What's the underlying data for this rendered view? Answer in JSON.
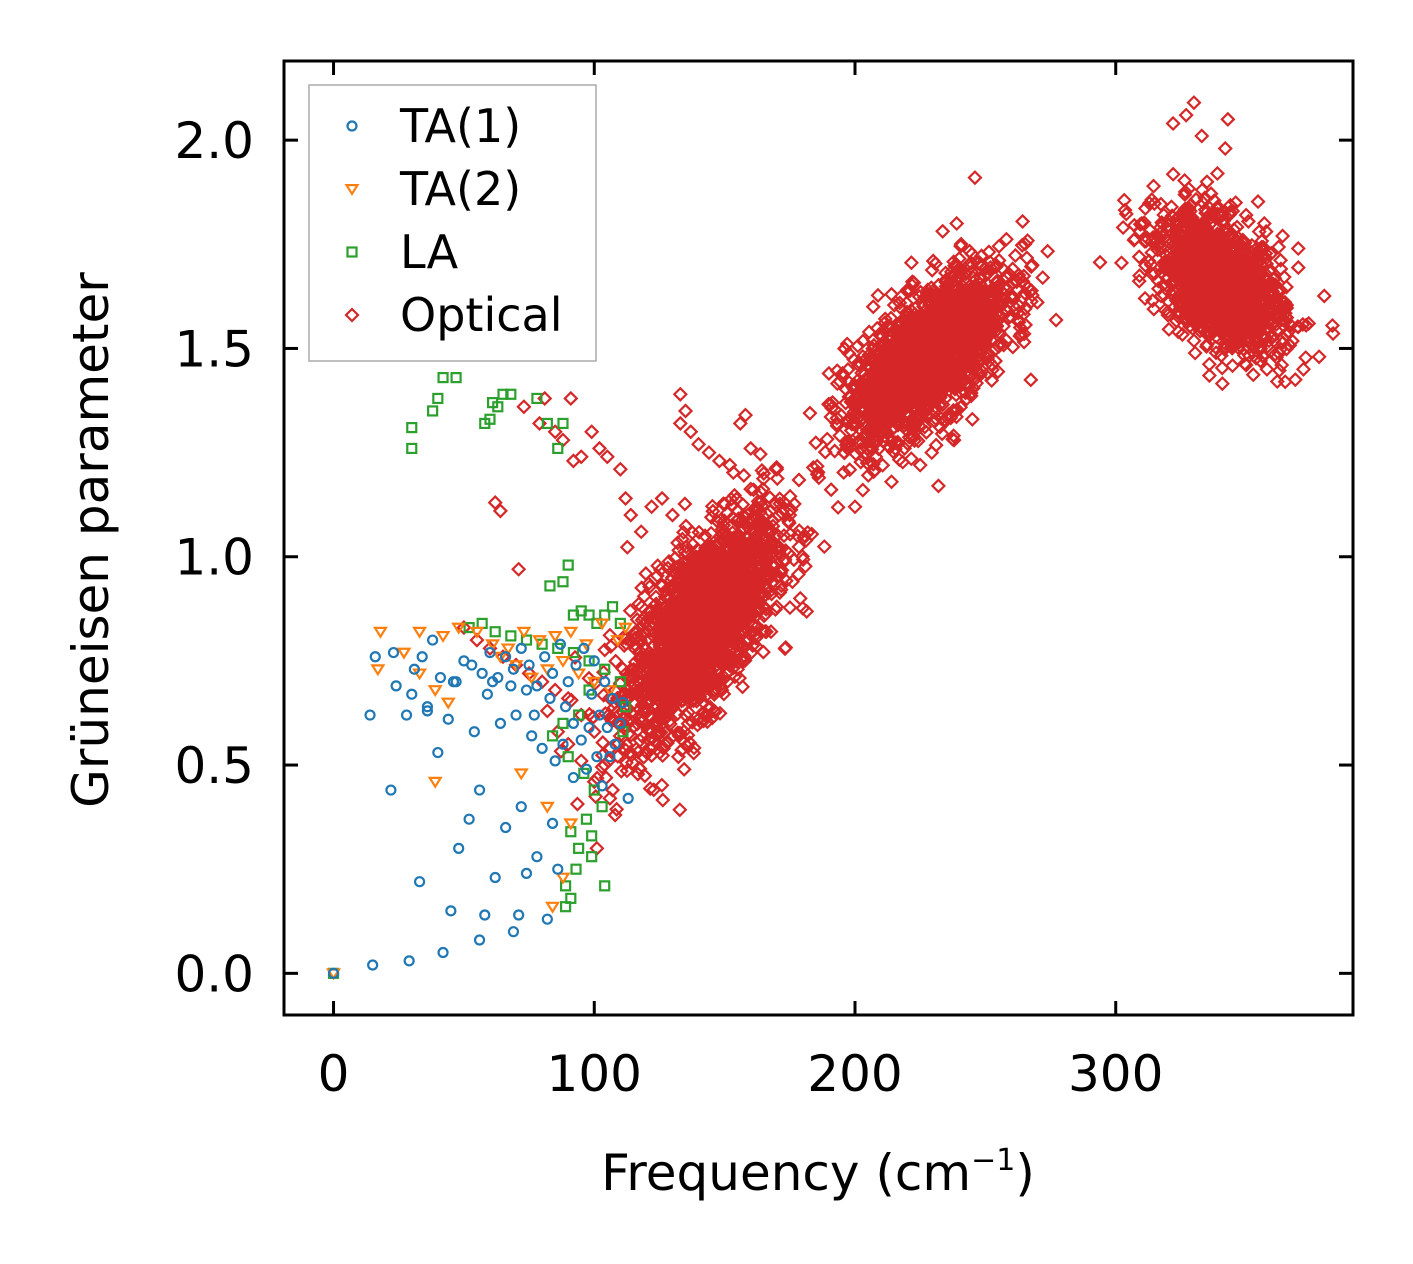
{
  "chart_data": {
    "type": "scatter",
    "title": "",
    "xlabel": "Frequency (cm",
    "xlabel_sup": "−1",
    "xlabel_close": ")",
    "ylabel": "Grüneisen parameter",
    "xlim": [
      -19,
      391
    ],
    "ylim": [
      -0.1,
      2.19
    ],
    "x_ticks": [
      0,
      100,
      200,
      300
    ],
    "x_tick_labels": [
      "0",
      "100",
      "200",
      "300"
    ],
    "y_ticks": [
      0.0,
      0.5,
      1.0,
      1.5,
      2.0
    ],
    "y_tick_labels": [
      "0.0",
      "0.5",
      "1.0",
      "1.5",
      "2.0"
    ],
    "grid": false,
    "legend_position": "top-left",
    "series": [
      {
        "name": "TA(1)",
        "marker": "circle",
        "color": "#1f77b4",
        "points": [
          [
            0,
            0.0
          ],
          [
            15,
            0.02
          ],
          [
            29,
            0.03
          ],
          [
            42,
            0.05
          ],
          [
            56,
            0.08
          ],
          [
            69,
            0.1
          ],
          [
            82,
            0.13
          ],
          [
            45,
            0.15
          ],
          [
            58,
            0.14
          ],
          [
            71,
            0.14
          ],
          [
            33,
            0.22
          ],
          [
            48,
            0.3
          ],
          [
            62,
            0.23
          ],
          [
            74,
            0.24
          ],
          [
            86,
            0.25
          ],
          [
            52,
            0.37
          ],
          [
            66,
            0.35
          ],
          [
            78,
            0.28
          ],
          [
            22,
            0.44
          ],
          [
            40,
            0.53
          ],
          [
            56,
            0.44
          ],
          [
            72,
            0.4
          ],
          [
            84,
            0.36
          ],
          [
            92,
            0.47
          ],
          [
            14,
            0.62
          ],
          [
            28,
            0.62
          ],
          [
            36,
            0.63
          ],
          [
            44,
            0.61
          ],
          [
            54,
            0.58
          ],
          [
            64,
            0.6
          ],
          [
            76,
            0.57
          ],
          [
            88,
            0.55
          ],
          [
            97,
            0.49
          ],
          [
            103,
            0.45
          ],
          [
            16,
            0.76
          ],
          [
            23,
            0.77
          ],
          [
            31,
            0.73
          ],
          [
            34,
            0.76
          ],
          [
            38,
            0.8
          ],
          [
            41,
            0.71
          ],
          [
            47,
            0.7
          ],
          [
            50,
            0.75
          ],
          [
            53,
            0.74
          ],
          [
            57,
            0.72
          ],
          [
            60,
            0.77
          ],
          [
            63,
            0.71
          ],
          [
            66,
            0.76
          ],
          [
            69,
            0.73
          ],
          [
            72,
            0.78
          ],
          [
            75,
            0.74
          ],
          [
            78,
            0.69
          ],
          [
            81,
            0.76
          ],
          [
            84,
            0.72
          ],
          [
            87,
            0.79
          ],
          [
            90,
            0.7
          ],
          [
            93,
            0.74
          ],
          [
            96,
            0.78
          ],
          [
            99,
            0.67
          ],
          [
            102,
            0.62
          ],
          [
            105,
            0.59
          ],
          [
            108,
            0.55
          ],
          [
            110,
            0.6
          ],
          [
            111,
            0.65
          ],
          [
            95,
            0.56
          ],
          [
            98,
            0.59
          ],
          [
            85,
            0.51
          ],
          [
            80,
            0.54
          ],
          [
            74,
            0.68
          ],
          [
            68,
            0.69
          ],
          [
            61,
            0.7
          ],
          [
            89,
            0.64
          ],
          [
            92,
            0.6
          ],
          [
            101,
            0.52
          ],
          [
            106,
            0.52
          ],
          [
            113,
            0.42
          ],
          [
            83,
            0.66
          ],
          [
            77,
            0.62
          ],
          [
            70,
            0.62
          ],
          [
            59,
            0.67
          ],
          [
            46,
            0.7
          ],
          [
            24,
            0.69
          ],
          [
            30,
            0.67
          ],
          [
            36,
            0.64
          ],
          [
            100,
            0.75
          ],
          [
            104,
            0.7
          ],
          [
            107,
            0.66
          ]
        ]
      },
      {
        "name": "TA(2)",
        "marker": "triangle-down",
        "color": "#ff7f0e",
        "points": [
          [
            0,
            0.0
          ],
          [
            17,
            0.73
          ],
          [
            27,
            0.77
          ],
          [
            33,
            0.72
          ],
          [
            39,
            0.68
          ],
          [
            44,
            0.65
          ],
          [
            18,
            0.82
          ],
          [
            33,
            0.82
          ],
          [
            42,
            0.81
          ],
          [
            48,
            0.83
          ],
          [
            55,
            0.82
          ],
          [
            61,
            0.79
          ],
          [
            67,
            0.78
          ],
          [
            73,
            0.82
          ],
          [
            79,
            0.8
          ],
          [
            85,
            0.81
          ],
          [
            91,
            0.82
          ],
          [
            97,
            0.79
          ],
          [
            103,
            0.84
          ],
          [
            109,
            0.8
          ],
          [
            64,
            0.76
          ],
          [
            70,
            0.74
          ],
          [
            76,
            0.71
          ],
          [
            82,
            0.73
          ],
          [
            88,
            0.75
          ],
          [
            94,
            0.72
          ],
          [
            100,
            0.7
          ],
          [
            106,
            0.68
          ],
          [
            39,
            0.46
          ],
          [
            72,
            0.48
          ],
          [
            82,
            0.4
          ],
          [
            91,
            0.36
          ],
          [
            84,
            0.16
          ],
          [
            88,
            0.23
          ],
          [
            112,
            0.83
          ]
        ]
      },
      {
        "name": "LA",
        "marker": "square",
        "color": "#2ca02c",
        "points": [
          [
            0,
            0.0
          ],
          [
            30,
            1.26
          ],
          [
            30,
            1.31
          ],
          [
            38,
            1.35
          ],
          [
            40,
            1.38
          ],
          [
            42,
            1.43
          ],
          [
            47,
            1.43
          ],
          [
            58,
            1.32
          ],
          [
            60,
            1.33
          ],
          [
            61,
            1.37
          ],
          [
            63,
            1.36
          ],
          [
            65,
            1.39
          ],
          [
            68,
            1.39
          ],
          [
            78,
            1.38
          ],
          [
            82,
            1.32
          ],
          [
            88,
            1.32
          ],
          [
            86,
            1.26
          ],
          [
            90,
            0.98
          ],
          [
            88,
            0.94
          ],
          [
            83,
            0.93
          ],
          [
            92,
            0.86
          ],
          [
            95,
            0.87
          ],
          [
            98,
            0.86
          ],
          [
            101,
            0.84
          ],
          [
            104,
            0.86
          ],
          [
            107,
            0.88
          ],
          [
            110,
            0.84
          ],
          [
            52,
            0.83
          ],
          [
            57,
            0.84
          ],
          [
            62,
            0.82
          ],
          [
            68,
            0.81
          ],
          [
            74,
            0.8
          ],
          [
            80,
            0.79
          ],
          [
            86,
            0.78
          ],
          [
            92,
            0.77
          ],
          [
            98,
            0.75
          ],
          [
            104,
            0.73
          ],
          [
            110,
            0.7
          ],
          [
            112,
            0.64
          ],
          [
            111,
            0.58
          ],
          [
            98,
            0.68
          ],
          [
            94,
            0.62
          ],
          [
            88,
            0.6
          ],
          [
            84,
            0.57
          ],
          [
            90,
            0.52
          ],
          [
            96,
            0.48
          ],
          [
            100,
            0.44
          ],
          [
            103,
            0.4
          ],
          [
            97,
            0.37
          ],
          [
            99,
            0.33
          ],
          [
            91,
            0.34
          ],
          [
            94,
            0.3
          ],
          [
            93,
            0.25
          ],
          [
            89,
            0.21
          ],
          [
            91,
            0.18
          ],
          [
            89,
            0.16
          ],
          [
            104,
            0.21
          ],
          [
            99,
            0.28
          ]
        ]
      },
      {
        "name": "Optical",
        "marker": "diamond",
        "color": "#d62728",
        "clusters": [
          {
            "x_center": 141,
            "y_center": 0.84,
            "x_spread": 26,
            "y_spread": 0.18,
            "slope": 0.006,
            "count": 2200
          },
          {
            "x_center": 228,
            "y_center": 1.48,
            "x_spread": 28,
            "y_spread": 0.14,
            "slope": 0.0045,
            "count": 1900
          },
          {
            "x_center": 340,
            "y_center": 1.66,
            "x_spread": 22,
            "y_spread": 0.13,
            "slope": -0.003,
            "count": 1400
          }
        ],
        "points": [
          [
            50,
            0.83
          ],
          [
            55,
            0.8
          ],
          [
            60,
            0.78
          ],
          [
            65,
            0.76
          ],
          [
            70,
            0.74
          ],
          [
            75,
            0.72
          ],
          [
            80,
            0.7
          ],
          [
            85,
            0.68
          ],
          [
            90,
            0.66
          ],
          [
            95,
            0.62
          ],
          [
            100,
            0.58
          ],
          [
            104,
            0.5
          ],
          [
            107,
            0.44
          ],
          [
            101,
            0.3
          ],
          [
            108,
            0.38
          ],
          [
            62,
            1.13
          ],
          [
            64,
            1.11
          ],
          [
            71,
            0.97
          ],
          [
            73,
            1.36
          ],
          [
            79,
            1.32
          ],
          [
            81,
            1.38
          ],
          [
            85,
            1.3
          ],
          [
            88,
            1.28
          ],
          [
            91,
            1.38
          ],
          [
            92,
            1.23
          ],
          [
            95,
            1.24
          ],
          [
            99,
            1.3
          ],
          [
            102,
            1.26
          ],
          [
            105,
            1.24
          ],
          [
            110,
            1.21
          ],
          [
            112,
            1.14
          ],
          [
            114,
            1.1
          ],
          [
            118,
            1.06
          ],
          [
            122,
            1.12
          ],
          [
            126,
            1.14
          ],
          [
            130,
            1.1
          ],
          [
            133,
            1.39
          ],
          [
            135,
            1.35
          ],
          [
            137,
            1.3
          ],
          [
            133,
            1.32
          ],
          [
            140,
            1.27
          ],
          [
            144,
            1.25
          ],
          [
            148,
            1.23
          ],
          [
            152,
            1.22
          ],
          [
            156,
            1.32
          ],
          [
            158,
            1.34
          ],
          [
            160,
            1.26
          ],
          [
            165,
            1.2
          ],
          [
            170,
            1.21
          ],
          [
            175,
            1.1
          ],
          [
            178,
            1.05
          ],
          [
            140,
            0.61
          ],
          [
            142,
            0.65
          ],
          [
            146,
            0.63
          ],
          [
            125,
            0.58
          ],
          [
            135,
            0.62
          ],
          [
            155,
            0.73
          ],
          [
            166,
            0.82
          ],
          [
            170,
            0.88
          ],
          [
            176,
            0.94
          ],
          [
            179,
            0.9
          ],
          [
            82,
            0.63
          ],
          [
            86,
            0.58
          ],
          [
            90,
            0.55
          ],
          [
            95,
            0.51
          ],
          [
            100,
            0.46
          ],
          [
            106,
            0.42
          ],
          [
            200,
            1.12
          ],
          [
            203,
            1.16
          ],
          [
            208,
            1.24
          ],
          [
            214,
            1.18
          ],
          [
            219,
            1.26
          ],
          [
            225,
            1.22
          ],
          [
            232,
            1.17
          ],
          [
            238,
            1.28
          ],
          [
            245,
            1.33
          ],
          [
            251,
            1.44
          ],
          [
            258,
            1.52
          ],
          [
            262,
            1.66
          ],
          [
            268,
            1.7
          ],
          [
            272,
            1.67
          ],
          [
            246,
            1.91
          ],
          [
            239,
            1.8
          ],
          [
            230,
            1.71
          ],
          [
            222,
            1.66
          ],
          [
            214,
            1.63
          ],
          [
            207,
            1.6
          ],
          [
            196,
            1.5
          ],
          [
            190,
            1.44
          ],
          [
            193,
            1.32
          ],
          [
            330,
            2.09
          ],
          [
            327,
            2.06
          ],
          [
            322,
            2.04
          ],
          [
            333,
            2.01
          ],
          [
            343,
            2.05
          ],
          [
            342,
            1.98
          ],
          [
            339,
            1.92
          ],
          [
            335,
            1.9
          ],
          [
            346,
            1.85
          ],
          [
            350,
            1.82
          ],
          [
            357,
            1.8
          ],
          [
            364,
            1.77
          ],
          [
            370,
            1.74
          ],
          [
            374,
            1.56
          ],
          [
            378,
            1.48
          ],
          [
            372,
            1.45
          ],
          [
            365,
            1.42
          ],
          [
            358,
            1.45
          ],
          [
            350,
            1.46
          ],
          [
            342,
            1.5
          ],
          [
            333,
            1.55
          ],
          [
            328,
            1.6
          ],
          [
            322,
            1.66
          ],
          [
            315,
            1.68
          ],
          [
            309,
            1.72
          ],
          [
            307,
            1.76
          ],
          [
            310,
            1.8
          ],
          [
            316,
            1.77
          ],
          [
            320,
            1.58
          ],
          [
            324,
            1.54
          ]
        ]
      }
    ]
  }
}
